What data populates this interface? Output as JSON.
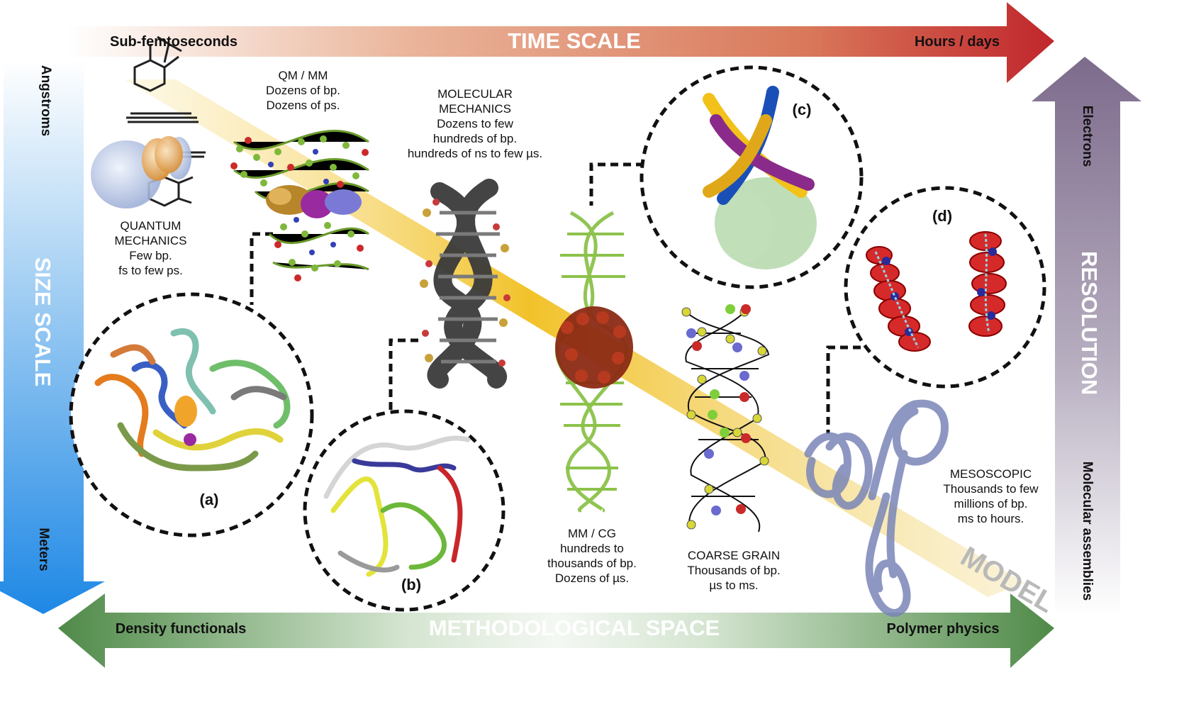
{
  "time_axis": {
    "title": "TIME SCALE",
    "start": "Sub-femtoseconds",
    "end": "Hours / days"
  },
  "size_axis": {
    "title": "SIZE SCALE",
    "start": "Angstroms",
    "end": "Meters"
  },
  "resolution_axis": {
    "title": "RESOLUTION",
    "start": "Electrons",
    "end": "Molecular assemblies"
  },
  "method_axis": {
    "title": "METHODOLOGICAL SPACE",
    "start": "Density functionals",
    "end": "Polymer physics"
  },
  "model_band": {
    "label": "MODEL"
  },
  "levels": {
    "quantum": [
      "QUANTUM",
      "MECHANICS",
      "Few bp.",
      "fs to few ps."
    ],
    "qmmm": [
      "QM / MM",
      "Dozens of bp.",
      "Dozens of ps."
    ],
    "mm": [
      "MOLECULAR",
      "MECHANICS",
      "Dozens to few",
      "hundreds of bp.",
      "hundreds of ns to few µs."
    ],
    "mmcg": [
      "MM / CG",
      "hundreds to",
      "thousands of bp.",
      "Dozens of µs."
    ],
    "cg": [
      "COARSE GRAIN",
      "Thousands of bp.",
      "µs to ms."
    ],
    "meso": [
      "MESOSCOPIC",
      "Thousands to few",
      "millions of bp.",
      "ms to hours."
    ]
  },
  "insets": {
    "a": "(a)",
    "b": "(b)",
    "c": "(c)",
    "d": "(d)"
  },
  "colors": {
    "time_arrow_end": "#c0262c",
    "size_arrow_end": "#1e88e5",
    "resolution_arrow": "#7d6b8c",
    "method_arrow": "#4f8a48",
    "model_band": "#f2c22a"
  }
}
